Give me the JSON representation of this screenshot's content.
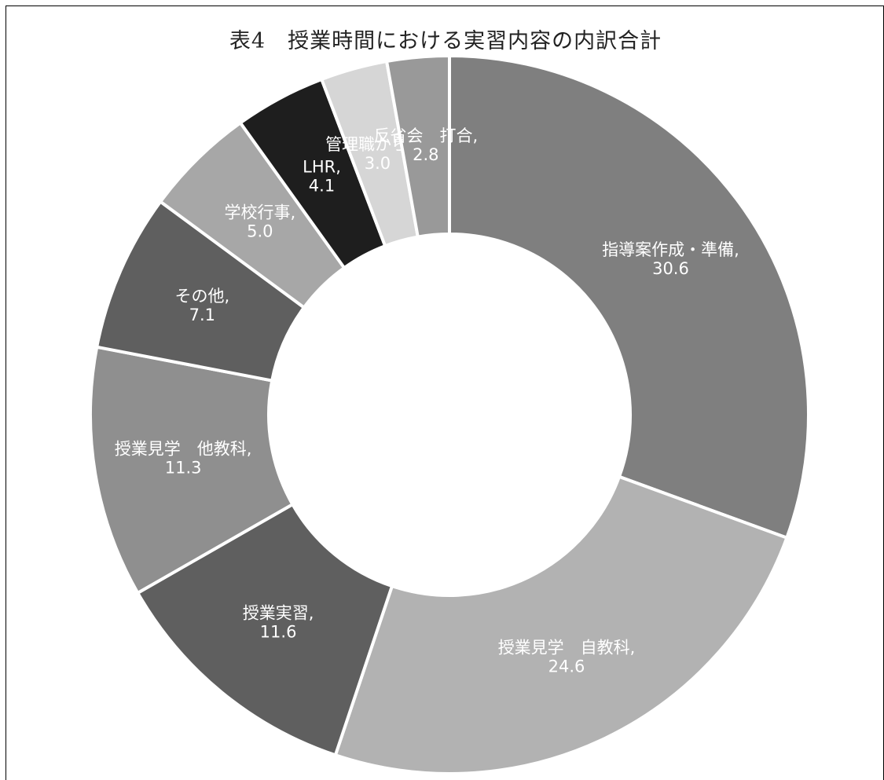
{
  "chart_data": {
    "type": "pie",
    "title": "表4　授業時間における実習内容の内訳合計",
    "slices": [
      {
        "name": "指導案作成・準備",
        "value": 30.6,
        "value_label": "30.6",
        "color": "#7f7f7f"
      },
      {
        "name": "授業見学　自教科",
        "value": 24.6,
        "value_label": "24.6",
        "color": "#b2b2b2"
      },
      {
        "name": "授業実習",
        "value": 11.6,
        "value_label": "11.6",
        "color": "#5f5f5f"
      },
      {
        "name": "授業見学　他教科",
        "value": 11.3,
        "value_label": "11.3",
        "color": "#8f8f8f"
      },
      {
        "name": "その他",
        "value": 7.1,
        "value_label": "7.1",
        "color": "#5f5f5f"
      },
      {
        "name": "学校行事",
        "value": 5.0,
        "value_label": "5.0",
        "color": "#a7a7a7"
      },
      {
        "name": "LHR",
        "value": 4.1,
        "value_label": "4.1",
        "color": "#1e1e1e"
      },
      {
        "name": "管理職から話",
        "value": 3.0,
        "value_label": "3.0",
        "color": "#d6d6d6"
      },
      {
        "name": "反省会　打合",
        "value": 2.8,
        "value_label": "2.8",
        "color": "#999999"
      }
    ],
    "start_angle_deg": 0,
    "direction": "clockwise",
    "donut": true,
    "legend": "none",
    "data_labels": "inside"
  }
}
